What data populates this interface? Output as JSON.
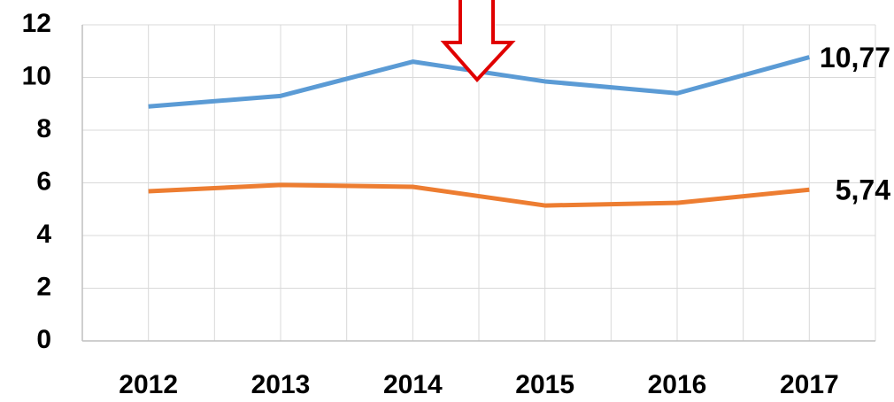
{
  "chart_data": {
    "type": "line",
    "categories": [
      "2012",
      "2013",
      "2014",
      "2015",
      "2016",
      "2017"
    ],
    "series": [
      {
        "color": "#5b9bd5",
        "values": [
          8.9,
          9.3,
          10.6,
          9.85,
          9.4,
          10.77
        ],
        "value_labels": [
          null,
          null,
          null,
          null,
          null,
          "10,77"
        ]
      },
      {
        "color": "#ed7d31",
        "values": [
          5.68,
          5.92,
          5.85,
          5.14,
          5.24,
          5.74
        ],
        "value_labels": [
          null,
          null,
          null,
          null,
          null,
          "5,74"
        ]
      }
    ],
    "ylim": [
      0,
      12
    ],
    "yticks": [
      0,
      2,
      4,
      6,
      8,
      10,
      12
    ],
    "grid": true
  }
}
